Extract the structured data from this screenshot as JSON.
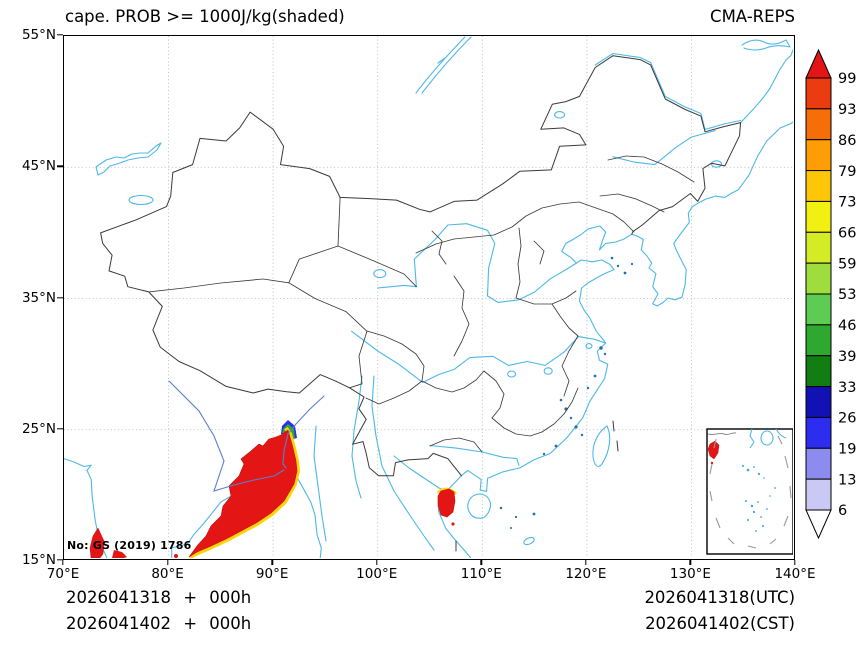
{
  "header": {
    "title": "cape. PROB >= 1000J/kg(shaded)",
    "model": "CMA-REPS"
  },
  "axes": {
    "x_tick_labels": [
      "70°E",
      "80°E",
      "90°E",
      "100°E",
      "110°E",
      "120°E",
      "130°E",
      "140°E"
    ],
    "y_tick_labels": [
      "55°N",
      "45°N",
      "35°N",
      "25°N",
      "15°N"
    ]
  },
  "colorbar": {
    "levels": [
      99,
      93,
      86,
      79,
      73,
      66,
      59,
      53,
      46,
      39,
      33,
      26,
      19,
      13,
      6
    ],
    "segment_colors_top_to_bottom": [
      "#ea3c10",
      "#f56e08",
      "#fc9e04",
      "#fdc707",
      "#f2f013",
      "#d3ec25",
      "#9fdc3e",
      "#5ecb52",
      "#2fa82f",
      "#127d12",
      "#1212b4",
      "#2d2df0",
      "#8b8bf0",
      "#c9c9f3"
    ],
    "over_arrow_color": "#e31515",
    "under_arrow_color": "#ffffff"
  },
  "map_note": "No: GS (2019) 1786",
  "footer": {
    "left_lines": [
      "2026041318 + 000h",
      "2026041402 + 000h"
    ],
    "right_lines": [
      "2026041318(UTC)",
      "2026041402(CST)"
    ]
  },
  "chart_data": {
    "type": "heatmap",
    "title": "cape. PROB >= 1000J/kg(shaded)",
    "model": "CMA-REPS",
    "variable": "Probability of CAPE >= 1000 J/kg",
    "units": "%",
    "projection": "lat/lon grid over China and surroundings",
    "lon_range_deg_e": [
      70,
      140
    ],
    "lat_range_deg_n": [
      15,
      55
    ],
    "grid_interval_deg": 10,
    "grid_style": "dotted",
    "legend_levels_percent": [
      6,
      13,
      19,
      26,
      33,
      39,
      46,
      53,
      59,
      66,
      73,
      79,
      86,
      93,
      99
    ],
    "legend_position": "right",
    "shaded_regions": [
      {
        "name": "bay-of-bengal-northeast-india-band",
        "lon_extent_deg_e": [
          81.5,
          91.7
        ],
        "lat_extent_deg_n": [
          15.6,
          24.3
        ],
        "dominant_value_percent": ">=99",
        "fringe": "narrow 26-93% multicolor rim at northeast tip near 91E,24N"
      },
      {
        "name": "southwest-india-coast-patch",
        "lon_extent_deg_e": [
          72.3,
          73.9
        ],
        "lat_extent_deg_n": [
          15.0,
          17.6
        ],
        "dominant_value_percent": ">=99"
      },
      {
        "name": "gulf-of-tonkin-vietnam-patch",
        "lon_extent_deg_e": [
          105.7,
          107.6
        ],
        "lat_extent_deg_n": [
          18.3,
          20.6
        ],
        "dominant_value_percent": ">=99",
        "fringe": "thin 66-93% rim on northern edge"
      },
      {
        "name": "south-china-sea-inset-patch",
        "dominant_value_percent": ">=99"
      }
    ],
    "times": {
      "init_utc": "2026041318",
      "init_cst": "2026041402",
      "lead": "000h"
    }
  }
}
